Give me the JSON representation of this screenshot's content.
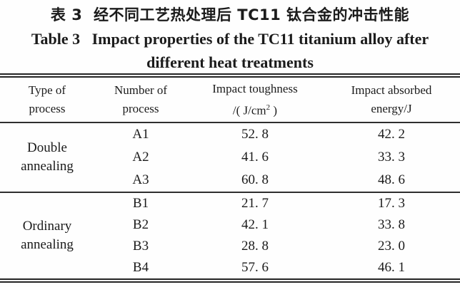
{
  "title": {
    "chinese": "表 3  经不同工艺热处理后 TC11 钛合金的冲击性能",
    "english_line1": "Table 3   Impact properties of the TC11 titanium alloy after",
    "english_line2": "different heat treatments"
  },
  "table": {
    "headers": [
      {
        "line1": "Type of",
        "line2": "process"
      },
      {
        "line1": "Number of",
        "line2": "process"
      },
      {
        "line1": "Impact toughness",
        "unit_prefix": "/( J/cm",
        "unit_sup": "2",
        "unit_suffix": " )"
      },
      {
        "line1": "Impact absorbed",
        "line2": "energy/J"
      }
    ],
    "sections": [
      {
        "type_line1": "Double",
        "type_line2": "annealing",
        "rows": [
          {
            "number": "A1",
            "toughness": "52. 8",
            "energy": "42. 2"
          },
          {
            "number": "A2",
            "toughness": "41. 6",
            "energy": "33. 3"
          },
          {
            "number": "A3",
            "toughness": "60. 8",
            "energy": "48. 6"
          }
        ]
      },
      {
        "type_line1": "Ordinary",
        "type_line2": "annealing",
        "rows": [
          {
            "number": "B1",
            "toughness": "21. 7",
            "energy": "17. 3"
          },
          {
            "number": "B2",
            "toughness": "42. 1",
            "energy": "33. 8"
          },
          {
            "number": "B3",
            "toughness": "28. 8",
            "energy": "23. 0"
          },
          {
            "number": "B4",
            "toughness": "57. 6",
            "energy": "46. 1"
          }
        ]
      }
    ]
  },
  "chart_data": {
    "type": "table",
    "title": "Table 3 Impact properties of the TC11 titanium alloy after different heat treatments",
    "columns": [
      "Type of process",
      "Number of process",
      "Impact toughness /(J/cm2)",
      "Impact absorbed energy/J"
    ],
    "rows": [
      [
        "Double annealing",
        "A1",
        52.8,
        42.2
      ],
      [
        "Double annealing",
        "A2",
        41.6,
        33.3
      ],
      [
        "Double annealing",
        "A3",
        60.8,
        48.6
      ],
      [
        "Ordinary annealing",
        "B1",
        21.7,
        17.3
      ],
      [
        "Ordinary annealing",
        "B2",
        42.1,
        33.8
      ],
      [
        "Ordinary annealing",
        "B3",
        28.8,
        23.0
      ],
      [
        "Ordinary annealing",
        "B4",
        57.6,
        46.1
      ]
    ]
  }
}
